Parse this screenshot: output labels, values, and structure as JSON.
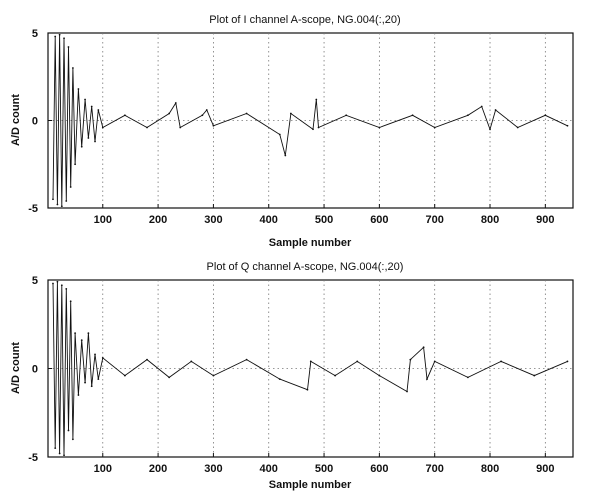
{
  "chart_data": [
    {
      "type": "line",
      "title": "Plot of I channel A-scope, NG.004(:,20)",
      "xlabel": "Sample number",
      "ylabel": "A/D count",
      "xlim": [
        1,
        950
      ],
      "ylim": [
        -5,
        5
      ],
      "xticks": [
        "100",
        "200",
        "300",
        "400",
        "500",
        "600",
        "700",
        "800",
        "900"
      ],
      "yticks": [
        "-5",
        "0",
        "5"
      ],
      "grid": true,
      "series": [
        {
          "x": [
            10,
            14,
            18,
            22,
            26,
            30,
            34,
            38,
            42,
            46,
            50,
            56,
            62,
            68,
            74,
            80,
            86,
            92,
            100,
            140,
            180,
            220,
            232,
            240,
            280,
            288,
            300,
            360,
            420,
            430,
            440,
            480,
            486,
            490,
            540,
            600,
            660,
            700,
            760,
            785,
            800,
            810,
            850,
            900,
            940
          ],
          "y": [
            -4.5,
            4.8,
            -4.8,
            4.9,
            -4.9,
            4.7,
            -4.6,
            4.2,
            -3.8,
            3.0,
            -2.5,
            1.8,
            -1.5,
            1.2,
            -1.0,
            0.8,
            -1.2,
            0.6,
            -0.4,
            0.3,
            -0.4,
            0.4,
            1.0,
            -0.4,
            0.3,
            0.6,
            -0.3,
            0.4,
            -0.8,
            -2.0,
            0.4,
            -0.5,
            1.2,
            -0.4,
            0.3,
            -0.4,
            0.3,
            -0.4,
            0.3,
            0.8,
            -0.5,
            0.6,
            -0.4,
            0.3,
            -0.3
          ]
        }
      ]
    },
    {
      "type": "line",
      "title": "Plot of Q channel A-scope, NG.004(:,20)",
      "xlabel": "Sample number",
      "ylabel": "A/D count",
      "xlim": [
        1,
        950
      ],
      "ylim": [
        -5,
        5
      ],
      "xticks": [
        "100",
        "200",
        "300",
        "400",
        "500",
        "600",
        "700",
        "800",
        "900"
      ],
      "yticks": [
        "-5",
        "0",
        "5"
      ],
      "grid": true,
      "series": [
        {
          "x": [
            10,
            14,
            18,
            22,
            26,
            30,
            34,
            38,
            42,
            46,
            50,
            56,
            62,
            68,
            74,
            80,
            86,
            92,
            100,
            140,
            180,
            220,
            260,
            300,
            360,
            420,
            470,
            476,
            520,
            560,
            600,
            650,
            656,
            680,
            686,
            700,
            760,
            820,
            880,
            940
          ],
          "y": [
            4.8,
            -4.5,
            4.9,
            -4.8,
            4.7,
            -4.9,
            4.5,
            -3.5,
            3.8,
            -4.0,
            2.0,
            -1.5,
            1.6,
            -0.8,
            2.0,
            -1.0,
            0.8,
            -0.6,
            0.6,
            -0.4,
            0.5,
            -0.5,
            0.4,
            -0.4,
            0.5,
            -0.6,
            -1.2,
            0.4,
            -0.4,
            0.4,
            -0.4,
            -1.3,
            0.5,
            1.2,
            -0.6,
            0.4,
            -0.5,
            0.4,
            -0.4,
            0.4
          ]
        }
      ]
    }
  ]
}
